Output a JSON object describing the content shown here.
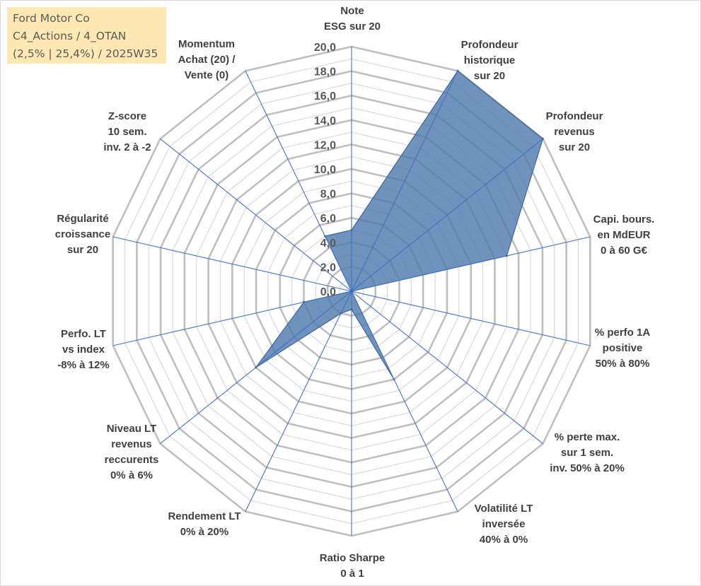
{
  "title_box": {
    "line1": "Ford Motor Co",
    "line2": "C4_Actions / 4_OTAN",
    "line3": "(2,5% | 25,4%) / 2025W35"
  },
  "chart_data": {
    "type": "radar",
    "title": "Ford Motor Co",
    "rmin": 0,
    "rmax": 20,
    "tick_step": 2,
    "tick_labels": [
      "0,0",
      "2,0",
      "4,0",
      "6,0",
      "8,0",
      "10,0",
      "12,0",
      "14,0",
      "16,0",
      "18,0",
      "20,0"
    ],
    "grid": true,
    "colors": {
      "fill": "#4f7bad",
      "line": "#3f67a0",
      "spoke": "#4472c4",
      "ring_major": "#bfbfbf",
      "ring_minor": "#d9d9d9"
    },
    "axes": [
      {
        "lines": [
          "Note",
          "ESG sur 20"
        ],
        "value": 5.0
      },
      {
        "lines": [
          "Profondeur",
          "historique",
          "sur 20"
        ],
        "value": 20.0
      },
      {
        "lines": [
          "Profondeur",
          "revenus",
          "sur 20"
        ],
        "value": 20.0
      },
      {
        "lines": [
          "Capi. bours.",
          "en MdEUR",
          "0 à 60 G€"
        ],
        "value": 13.0
      },
      {
        "lines": [
          "% perfo 1A",
          "positive",
          "50% à 80%"
        ],
        "value": 0.0
      },
      {
        "lines": [
          "% perte max.",
          "sur 1 sem.",
          "inv. 50% à 20%"
        ],
        "value": 0.0
      },
      {
        "lines": [
          "Volatilité LT",
          "inversée",
          "40% à 0%"
        ],
        "value": 8.0
      },
      {
        "lines": [
          "Ratio Sharpe",
          "0 à 1"
        ],
        "value": 1.5
      },
      {
        "lines": [
          "Rendement LT",
          "0% à 20%"
        ],
        "value": 2.0
      },
      {
        "lines": [
          "Niveau LT",
          "revenus",
          "reccurents",
          "0% à 6%"
        ],
        "value": 10.0
      },
      {
        "lines": [
          "Perfo. LT",
          "vs index",
          "-8% à 12%"
        ],
        "value": 4.0
      },
      {
        "lines": [
          "Régularité",
          "croissance",
          "sur 20"
        ],
        "value": 0.0
      },
      {
        "lines": [
          "Z-score",
          "10 sem.",
          "inv. 2 à -2"
        ],
        "value": 0.0
      },
      {
        "lines": [
          "Momentum",
          "Achat (20) /",
          "Vente (0)"
        ],
        "value": 5.0
      }
    ]
  }
}
